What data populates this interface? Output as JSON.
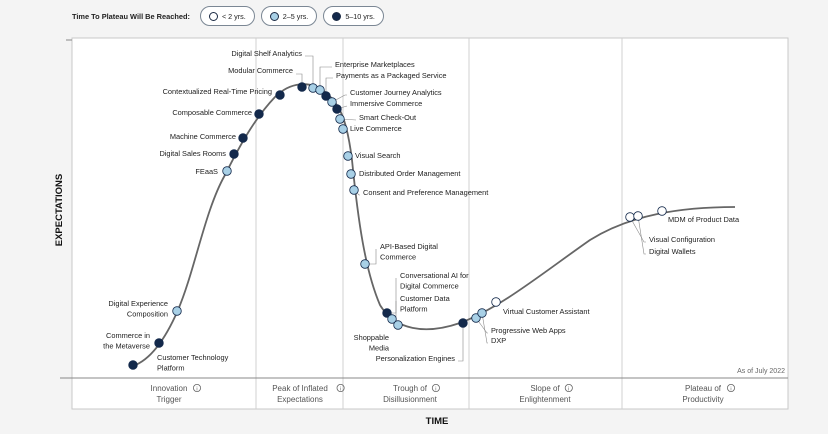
{
  "legend": {
    "title": "Time To Plateau Will Be Reached:",
    "items": [
      {
        "label": "< 2 yrs.",
        "color": "#ffffff"
      },
      {
        "label": "2–5 yrs.",
        "color": "#a8d0e6"
      },
      {
        "label": "5–10 yrs.",
        "color": "#13294b"
      }
    ]
  },
  "colors": {
    "lt2": "#ffffff",
    "2to5": "#a8d0e6",
    "5to10": "#13294b",
    "curve": "#666666"
  },
  "axis": {
    "y_title": "EXPECTATIONS",
    "x_title": "TIME"
  },
  "as_of": "As of July 2022",
  "phases": [
    {
      "lines": [
        "Innovation",
        "Trigger"
      ]
    },
    {
      "lines": [
        "Peak of Inflated",
        "Expectations"
      ]
    },
    {
      "lines": [
        "Trough of",
        "Disillusionment"
      ]
    },
    {
      "lines": [
        "Slope of",
        "Enlightenment"
      ]
    },
    {
      "lines": [
        "Plateau of",
        "Productivity"
      ]
    }
  ],
  "chart_data": {
    "type": "scatter",
    "x_label": "TIME",
    "y_label": "EXPECTATIONS",
    "phases": [
      "Innovation Trigger",
      "Peak of Inflated Expectations",
      "Trough of Disillusionment",
      "Slope of Enlightenment",
      "Plateau of Productivity"
    ],
    "points": [
      {
        "name": "Customer Technology Platform",
        "category": "5to10",
        "label_lines": [
          "Customer Technology",
          "Platform"
        ]
      },
      {
        "name": "Commerce in the Metaverse",
        "category": "5to10",
        "label_lines": [
          "Commerce in",
          "the Metaverse"
        ]
      },
      {
        "name": "Digital Experience Composition",
        "category": "2to5",
        "label_lines": [
          "Digital Experience",
          "Composition"
        ]
      },
      {
        "name": "FEaaS",
        "category": "2to5",
        "label_lines": [
          "FEaaS"
        ]
      },
      {
        "name": "Digital Sales Rooms",
        "category": "5to10",
        "label_lines": [
          "Digital Sales Rooms"
        ]
      },
      {
        "name": "Machine Commerce",
        "category": "5to10",
        "label_lines": [
          "Machine Commerce"
        ]
      },
      {
        "name": "Composable Commerce",
        "category": "5to10",
        "label_lines": [
          "Composable Commerce"
        ]
      },
      {
        "name": "Contextualized Real-Time Pricing",
        "category": "5to10",
        "label_lines": [
          "Contextualized Real-Time Pricing"
        ]
      },
      {
        "name": "Modular Commerce",
        "category": "5to10",
        "label_lines": [
          "Modular Commerce"
        ]
      },
      {
        "name": "Digital Shelf Analytics",
        "category": "2to5",
        "label_lines": [
          "Digital Shelf Analytics"
        ]
      },
      {
        "name": "Enterprise Marketplaces",
        "category": "2to5",
        "label_lines": [
          "Enterprise Marketplaces"
        ]
      },
      {
        "name": "Payments as a Packaged Service",
        "category": "5to10",
        "label_lines": [
          "Payments as a Packaged Service"
        ]
      },
      {
        "name": "Customer Journey Analytics",
        "category": "2to5",
        "label_lines": [
          "Customer Journey Analytics"
        ]
      },
      {
        "name": "Immersive Commerce",
        "category": "5to10",
        "label_lines": [
          "Immersive Commerce"
        ]
      },
      {
        "name": "Smart Check-Out",
        "category": "2to5",
        "label_lines": [
          "Smart Check-Out"
        ]
      },
      {
        "name": "Live Commerce",
        "category": "2to5",
        "label_lines": [
          "Live Commerce"
        ]
      },
      {
        "name": "Visual Search",
        "category": "2to5",
        "label_lines": [
          "Visual Search"
        ]
      },
      {
        "name": "Distributed Order Management",
        "category": "2to5",
        "label_lines": [
          "Distributed Order Management"
        ]
      },
      {
        "name": "Consent and Preference Management",
        "category": "2to5",
        "label_lines": [
          "Consent and Preference Management"
        ]
      },
      {
        "name": "API-Based Digital Commerce",
        "category": "2to5",
        "label_lines": [
          "API-Based Digital",
          "Commerce"
        ]
      },
      {
        "name": "Conversational AI for Digital Commerce",
        "category": "5to10",
        "label_lines": [
          "Conversational AI for",
          "Digital Commerce"
        ]
      },
      {
        "name": "Customer Data Platform",
        "category": "2to5",
        "label_lines": [
          "Customer Data",
          "Platform"
        ]
      },
      {
        "name": "Shoppable Media",
        "category": "2to5",
        "label_lines": [
          "Shoppable",
          "Media"
        ]
      },
      {
        "name": "Personalization Engines",
        "category": "5to10",
        "label_lines": [
          "Personalization Engines"
        ]
      },
      {
        "name": "Progressive Web Apps",
        "category": "2to5",
        "label_lines": [
          "Progressive Web Apps"
        ]
      },
      {
        "name": "DXP",
        "category": "2to5",
        "label_lines": [
          "DXP"
        ]
      },
      {
        "name": "Virtual Customer Assistant",
        "category": "lt2",
        "label_lines": [
          "Virtual Customer Assistant"
        ]
      },
      {
        "name": "Visual Configuration",
        "category": "lt2",
        "label_lines": [
          "Visual Configuration"
        ]
      },
      {
        "name": "Digital Wallets",
        "category": "lt2",
        "label_lines": [
          "Digital Wallets"
        ]
      },
      {
        "name": "MDM of Product Data",
        "category": "lt2",
        "label_lines": [
          "MDM of Product Data"
        ]
      }
    ]
  }
}
